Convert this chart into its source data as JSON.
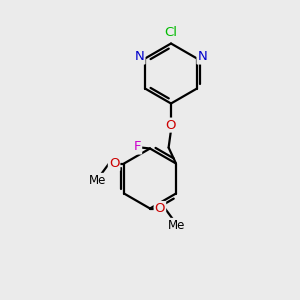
{
  "bg_color": "#ebebeb",
  "bond_color": "#000000",
  "bond_width": 1.6,
  "atom_colors": {
    "Cl": "#00bb00",
    "N": "#0000cc",
    "O": "#cc0000",
    "F": "#cc00cc",
    "C": "#000000"
  },
  "font_size_atoms": 9.5,
  "font_size_me": 8.5
}
